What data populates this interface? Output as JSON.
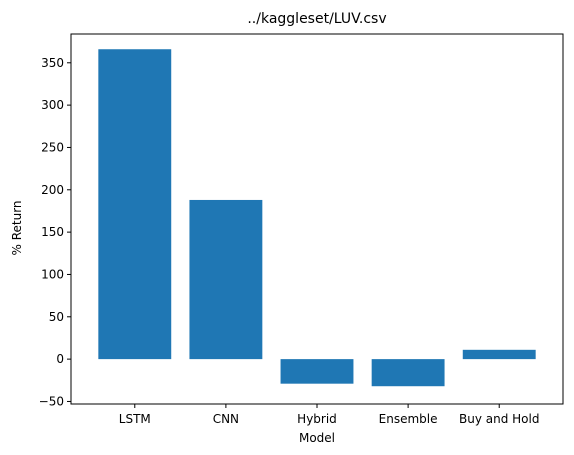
{
  "chart_data": {
    "type": "bar",
    "title": "../kaggleset/LUV.csv",
    "xlabel": "Model",
    "ylabel": "% Return",
    "categories": [
      "LSTM",
      "CNN",
      "Hybrid",
      "Ensemble",
      "Buy and Hold"
    ],
    "values": [
      366,
      188,
      -29,
      -32,
      11
    ],
    "ylim": [
      -53,
      384
    ],
    "yticks": [
      -50,
      0,
      50,
      100,
      150,
      200,
      250,
      300,
      350
    ],
    "grid": false,
    "bar_color": "#1f77b4"
  }
}
